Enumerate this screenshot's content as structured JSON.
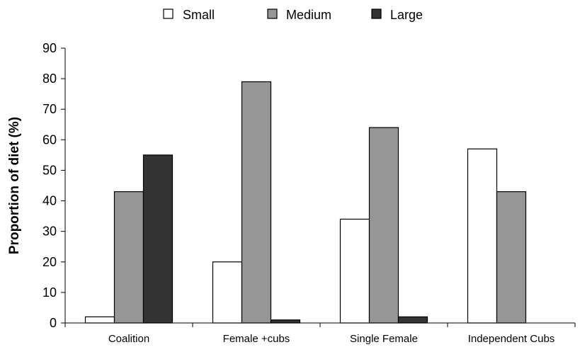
{
  "chart_data": {
    "type": "bar",
    "title": "",
    "xlabel": "",
    "ylabel": "Proportion of diet (%)",
    "ylim": [
      0,
      90
    ],
    "yticks": [
      0,
      10,
      20,
      30,
      40,
      50,
      60,
      70,
      80,
      90
    ],
    "grid": false,
    "legend_position": "top",
    "categories": [
      "Coalition",
      "Female +cubs",
      "Single Female",
      "Independent Cubs"
    ],
    "series": [
      {
        "name": "Small",
        "color": "#ffffff",
        "values": [
          2,
          20,
          34,
          57
        ]
      },
      {
        "name": "Medium",
        "color": "#969696",
        "values": [
          43,
          79,
          64,
          43
        ]
      },
      {
        "name": "Large",
        "color": "#333333",
        "values": [
          55,
          1,
          2,
          0
        ]
      }
    ]
  }
}
